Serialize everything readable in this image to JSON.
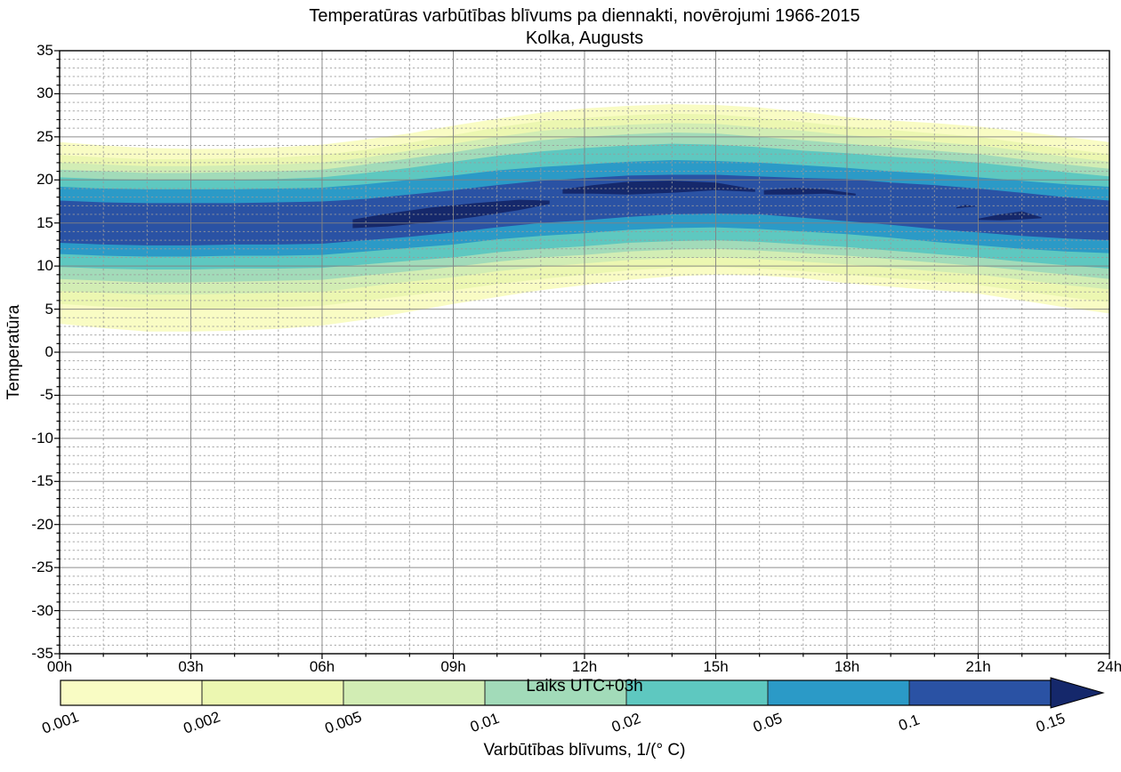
{
  "title": {
    "line1": "Temperatūras varbūtības blīvums pa diennakti, novērojumi 1966-2015",
    "line2": "Kolka, Augusts"
  },
  "axes": {
    "x": {
      "label": "Laiks UTC+03h",
      "tick_labels": [
        "00h",
        "03h",
        "06h",
        "09h",
        "12h",
        "15h",
        "18h",
        "21h",
        "24h"
      ],
      "tick_hours": [
        0,
        3,
        6,
        9,
        12,
        15,
        18,
        21,
        24
      ],
      "range_hours": [
        0,
        24
      ],
      "minor_step_hours": 1
    },
    "y": {
      "label": "Temperatūra",
      "tick_labels": [
        "35",
        "30",
        "25",
        "20",
        "15",
        "10",
        "5",
        "0",
        "-5",
        "-10",
        "-15",
        "-20",
        "-25",
        "-30",
        "-35"
      ],
      "tick_values": [
        35,
        30,
        25,
        20,
        15,
        10,
        5,
        0,
        -5,
        -10,
        -15,
        -20,
        -25,
        -30,
        -35
      ],
      "range": [
        -35,
        35
      ],
      "minor_step": 1
    }
  },
  "colorbar": {
    "caption": "Varbūtības blīvums, 1/(° C)",
    "tick_labels": [
      "0.001",
      "0.002",
      "0.005",
      "0.01",
      "0.02",
      "0.05",
      "0.1",
      "0.15"
    ],
    "segment_colors": [
      "#f9fcc4",
      "#ecf7b1",
      "#d2edb4",
      "#a2dbb9",
      "#5ec8c0",
      "#2b9ac7",
      "#2a52a4"
    ],
    "arrow_color": "#15286b"
  },
  "colors": {
    "background": "#ffffff",
    "grid_minor": "#9a9a9a",
    "grid_major": "#828282",
    "axis_frame": "#000000"
  },
  "chart_data": {
    "type": "filled_contour",
    "title": "Temperatūras varbūtības blīvums pa diennakti, novērojumi 1966-2015 — Kolka, Augusts",
    "xlabel": "Laiks UTC+03h",
    "ylabel": "Temperatūra",
    "xlim_hours": [
      0,
      24
    ],
    "ylim": [
      -35,
      35
    ],
    "grid": "major solid, minor dashed (1 h / 1 °C)",
    "legend_position": "horizontal colorbar below",
    "levels": [
      0.001,
      0.002,
      0.005,
      0.01,
      0.02,
      0.05,
      0.1,
      0.15
    ],
    "x_hours": [
      0,
      1,
      2,
      3,
      4,
      5,
      6,
      7,
      8,
      9,
      10,
      11,
      12,
      13,
      14,
      15,
      16,
      17,
      18,
      19,
      20,
      21,
      22,
      23,
      24
    ],
    "bands": [
      {
        "level": 0.001,
        "color": "#f9fcc4",
        "upper": [
          24.4,
          24.0,
          23.7,
          23.6,
          23.6,
          23.8,
          24.1,
          24.7,
          25.4,
          26.3,
          27.1,
          27.8,
          28.3,
          28.6,
          28.8,
          28.7,
          28.4,
          27.9,
          27.3,
          26.9,
          26.6,
          26.2,
          25.6,
          25.0,
          24.4
        ],
        "lower": [
          3.3,
          2.8,
          2.4,
          2.4,
          2.5,
          2.7,
          3.1,
          3.8,
          4.7,
          5.6,
          6.4,
          7.2,
          7.8,
          8.4,
          8.8,
          9.0,
          8.9,
          8.6,
          8.0,
          7.6,
          7.2,
          6.8,
          6.0,
          5.2,
          4.5
        ]
      },
      {
        "level": 0.002,
        "color": "#ecf7b1",
        "upper": [
          22.9,
          22.6,
          22.4,
          22.4,
          22.5,
          22.6,
          22.9,
          23.5,
          24.3,
          25.2,
          26.1,
          26.8,
          27.2,
          27.5,
          27.7,
          27.6,
          27.2,
          26.7,
          26.2,
          25.8,
          25.4,
          25.0,
          24.3,
          23.6,
          23.0
        ],
        "lower": [
          5.6,
          5.3,
          5.1,
          5.0,
          5.1,
          5.2,
          5.4,
          6.0,
          6.6,
          7.2,
          7.9,
          8.5,
          9.0,
          9.5,
          9.8,
          9.9,
          9.7,
          9.4,
          9.0,
          8.6,
          8.2,
          7.8,
          7.1,
          6.4,
          5.8
        ]
      },
      {
        "level": 0.005,
        "color": "#d2edb4",
        "upper": [
          22.0,
          21.8,
          21.6,
          21.6,
          21.7,
          21.8,
          22.0,
          22.6,
          23.4,
          24.2,
          25.0,
          25.7,
          26.1,
          26.4,
          26.6,
          26.5,
          26.1,
          25.7,
          25.2,
          24.8,
          24.4,
          24.0,
          23.4,
          22.7,
          22.1
        ],
        "lower": [
          7.1,
          6.9,
          6.7,
          6.7,
          6.8,
          6.9,
          7.0,
          7.6,
          8.2,
          8.7,
          9.4,
          9.9,
          10.3,
          10.7,
          10.9,
          11.0,
          10.8,
          10.5,
          10.2,
          9.8,
          9.4,
          9.0,
          8.4,
          7.8,
          7.3
        ]
      },
      {
        "level": 0.01,
        "color": "#a2dbb9",
        "upper": [
          21.2,
          21.0,
          20.8,
          20.8,
          20.9,
          21.0,
          21.2,
          21.8,
          22.5,
          23.2,
          24.0,
          24.6,
          25.0,
          25.3,
          25.5,
          25.4,
          25.0,
          24.6,
          24.2,
          23.8,
          23.4,
          23.0,
          22.4,
          21.8,
          21.3
        ],
        "lower": [
          8.5,
          8.3,
          8.1,
          8.1,
          8.2,
          8.3,
          8.4,
          8.9,
          9.4,
          9.9,
          10.5,
          11.0,
          11.3,
          11.7,
          11.9,
          12.0,
          11.8,
          11.5,
          11.2,
          10.8,
          10.4,
          10.0,
          9.5,
          9.0,
          8.5
        ]
      },
      {
        "level": 0.02,
        "color": "#5ec8c0",
        "upper": [
          20.3,
          20.1,
          20.0,
          20.0,
          20.0,
          20.1,
          20.3,
          20.8,
          21.4,
          22.1,
          22.8,
          23.3,
          23.7,
          24.0,
          24.2,
          24.1,
          23.8,
          23.4,
          23.1,
          22.7,
          22.4,
          22.0,
          21.5,
          20.9,
          20.4
        ],
        "lower": [
          9.9,
          9.7,
          9.6,
          9.6,
          9.7,
          9.7,
          9.8,
          10.2,
          10.6,
          11.0,
          11.6,
          12.0,
          12.3,
          12.7,
          12.9,
          13.0,
          12.8,
          12.5,
          12.2,
          11.8,
          11.4,
          11.0,
          10.5,
          10.1,
          9.7
        ]
      },
      {
        "level": 0.05,
        "color": "#2b9ac7",
        "upper": [
          19.2,
          19.0,
          18.9,
          18.9,
          18.9,
          19.0,
          19.1,
          19.5,
          20.0,
          20.5,
          21.1,
          21.5,
          21.8,
          22.1,
          22.3,
          22.2,
          22.0,
          21.7,
          21.4,
          21.0,
          20.7,
          20.3,
          19.9,
          19.5,
          19.2
        ],
        "lower": [
          11.4,
          11.2,
          11.1,
          11.1,
          11.2,
          11.2,
          11.3,
          11.7,
          12.1,
          12.5,
          13.1,
          13.5,
          13.8,
          14.2,
          14.4,
          14.5,
          14.3,
          14.0,
          13.7,
          13.3,
          12.8,
          12.4,
          12.0,
          11.7,
          11.5
        ]
      },
      {
        "level": 0.1,
        "color": "#2a52a4",
        "upper": [
          17.6,
          17.4,
          17.3,
          17.3,
          17.3,
          17.4,
          17.5,
          17.8,
          18.3,
          18.8,
          19.4,
          19.9,
          20.2,
          20.5,
          20.6,
          20.6,
          20.4,
          20.2,
          20.1,
          19.7,
          19.4,
          19.0,
          18.5,
          18.0,
          17.6
        ],
        "lower": [
          12.7,
          12.5,
          12.4,
          12.4,
          12.5,
          12.5,
          12.6,
          13.0,
          13.4,
          13.9,
          14.5,
          15.0,
          15.3,
          15.7,
          16.0,
          16.1,
          16.0,
          15.6,
          15.2,
          14.8,
          14.3,
          13.9,
          13.5,
          13.2,
          13.0
        ]
      }
    ],
    "peak_blobs": [
      {
        "level": 0.15,
        "color": "#15286b",
        "hours": [
          6.7,
          7.5,
          8.5,
          9.5,
          10.5,
          11.2
        ],
        "upper": [
          15.4,
          16.1,
          16.8,
          17.3,
          17.7,
          17.6
        ],
        "lower": [
          14.4,
          14.6,
          15.1,
          15.7,
          16.5,
          17.2
        ]
      },
      {
        "level": 0.15,
        "color": "#15286b",
        "hours": [
          11.5,
          12.2,
          13.0,
          14.0,
          15.0,
          15.9
        ],
        "upper": [
          18.9,
          19.4,
          19.8,
          19.9,
          19.7,
          18.9
        ],
        "lower": [
          18.4,
          18.4,
          18.3,
          18.5,
          18.8,
          18.6
        ]
      },
      {
        "level": 0.15,
        "color": "#15286b",
        "hours": [
          16.1,
          16.8,
          17.5,
          18.2
        ],
        "upper": [
          18.8,
          19.1,
          18.9,
          18.4
        ],
        "lower": [
          18.3,
          18.3,
          18.4,
          18.2
        ]
      },
      {
        "level": 0.15,
        "color": "#15286b",
        "hours": [
          20.5,
          20.7,
          20.95
        ],
        "upper": [
          16.8,
          17.1,
          16.95
        ],
        "lower": [
          16.7,
          16.8,
          16.9
        ]
      },
      {
        "level": 0.15,
        "color": "#15286b",
        "hours": [
          21.0,
          21.5,
          22.0,
          22.45
        ],
        "upper": [
          15.5,
          16.0,
          16.35,
          15.65
        ],
        "lower": [
          15.35,
          15.3,
          15.4,
          15.55
        ]
      }
    ]
  }
}
